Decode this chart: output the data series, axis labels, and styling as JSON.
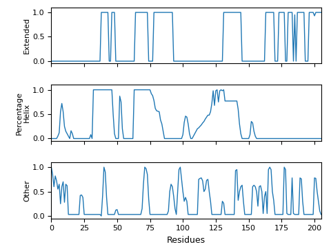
{
  "xlabel": "Residues",
  "ylabels": [
    "Extended",
    "Percentage\nHelix",
    "Other"
  ],
  "xlim": [
    0,
    205
  ],
  "line_color": "#1f77b4",
  "line_width": 1.0,
  "yticks": [
    0.0,
    0.5,
    1.0
  ],
  "xticks": [
    0,
    25,
    50,
    75,
    100,
    125,
    150,
    175,
    200
  ],
  "figsize": [
    4.8,
    3.65
  ],
  "dpi": 100
}
